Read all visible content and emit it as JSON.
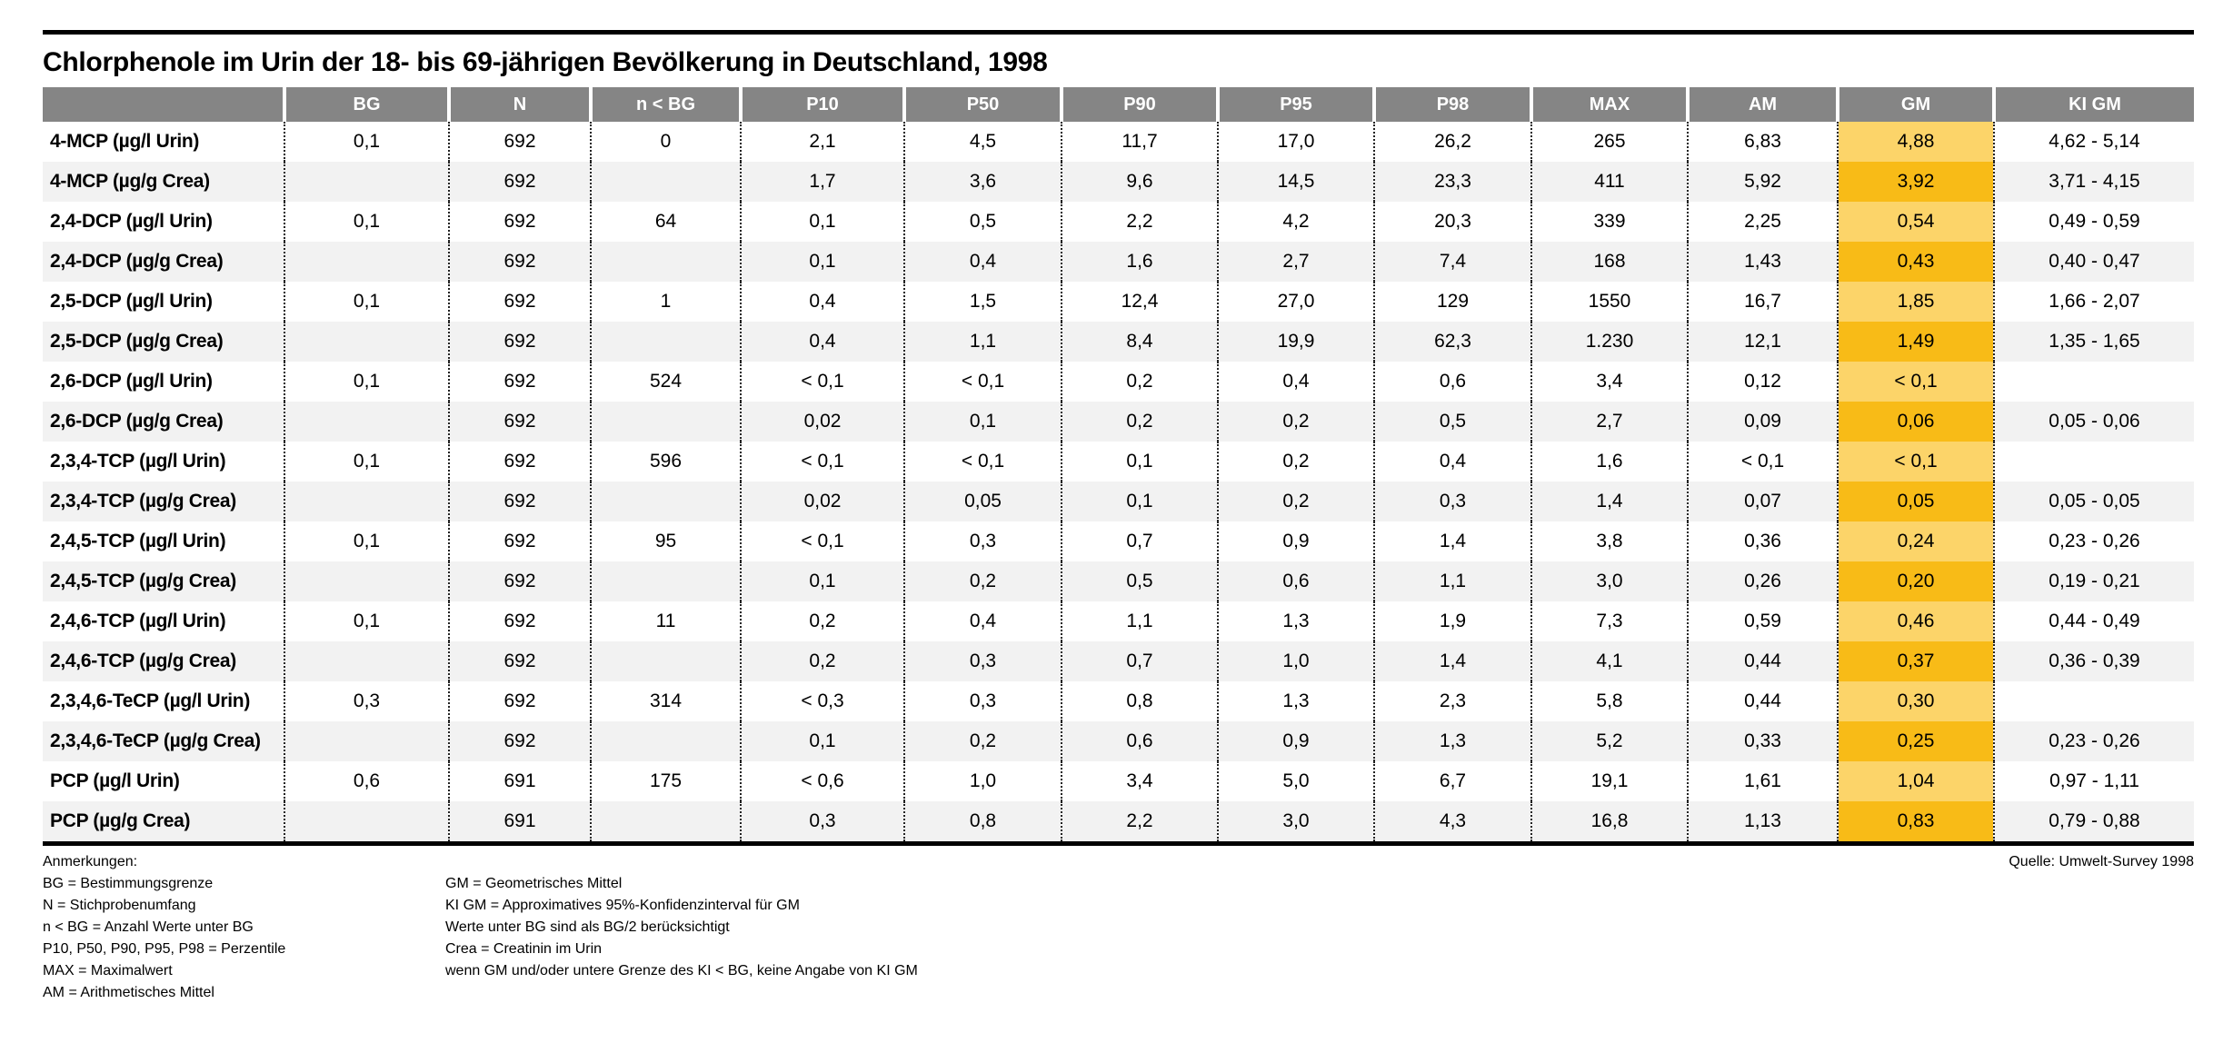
{
  "title": "Chlorphenole im Urin der 18- bis 69-jährigen Bevölkerung in Deutschland, 1998",
  "chart_data": {
    "type": "table",
    "title": "Chlorphenole im Urin der 18- bis 69-jährigen Bevölkerung in Deutschland, 1998",
    "columns": [
      "",
      "BG",
      "N",
      "n < BG",
      "P10",
      "P50",
      "P90",
      "P95",
      "P98",
      "MAX",
      "AM",
      "GM",
      "KI GM"
    ],
    "column_keys": [
      "bg",
      "n",
      "n_lt_bg",
      "p10",
      "p50",
      "p90",
      "p95",
      "p98",
      "max",
      "am",
      "gm",
      "ki_gm"
    ],
    "rows": [
      {
        "label": "4-MCP (µg/l Urin)",
        "values": [
          "0,1",
          "692",
          "0",
          "2,1",
          "4,5",
          "11,7",
          "17,0",
          "26,2",
          "265",
          "6,83",
          "4,88",
          "4,62 - 5,14"
        ]
      },
      {
        "label": "4-MCP (µg/g Crea)",
        "values": [
          "",
          "692",
          "",
          "1,7",
          "3,6",
          "9,6",
          "14,5",
          "23,3",
          "411",
          "5,92",
          "3,92",
          "3,71 - 4,15"
        ]
      },
      {
        "label": "2,4-DCP (µg/l Urin)",
        "values": [
          "0,1",
          "692",
          "64",
          "0,1",
          "0,5",
          "2,2",
          "4,2",
          "20,3",
          "339",
          "2,25",
          "0,54",
          "0,49 - 0,59"
        ]
      },
      {
        "label": "2,4-DCP (µg/g Crea)",
        "values": [
          "",
          "692",
          "",
          "0,1",
          "0,4",
          "1,6",
          "2,7",
          "7,4",
          "168",
          "1,43",
          "0,43",
          "0,40 - 0,47"
        ]
      },
      {
        "label": "2,5-DCP (µg/l Urin)",
        "values": [
          "0,1",
          "692",
          "1",
          "0,4",
          "1,5",
          "12,4",
          "27,0",
          "129",
          "1550",
          "16,7",
          "1,85",
          "1,66 - 2,07"
        ]
      },
      {
        "label": "2,5-DCP (µg/g Crea)",
        "values": [
          "",
          "692",
          "",
          "0,4",
          "1,1",
          "8,4",
          "19,9",
          "62,3",
          "1.230",
          "12,1",
          "1,49",
          "1,35 - 1,65"
        ]
      },
      {
        "label": "2,6-DCP (µg/l Urin)",
        "values": [
          "0,1",
          "692",
          "524",
          "< 0,1",
          "< 0,1",
          "0,2",
          "0,4",
          "0,6",
          "3,4",
          "0,12",
          "< 0,1",
          ""
        ]
      },
      {
        "label": "2,6-DCP (µg/g Crea)",
        "values": [
          "",
          "692",
          "",
          "0,02",
          "0,1",
          "0,2",
          "0,2",
          "0,5",
          "2,7",
          "0,09",
          "0,06",
          "0,05 - 0,06"
        ]
      },
      {
        "label": "2,3,4-TCP (µg/l Urin)",
        "values": [
          "0,1",
          "692",
          "596",
          "< 0,1",
          "< 0,1",
          "0,1",
          "0,2",
          "0,4",
          "1,6",
          "< 0,1",
          "< 0,1",
          ""
        ]
      },
      {
        "label": "2,3,4-TCP (µg/g Crea)",
        "values": [
          "",
          "692",
          "",
          "0,02",
          "0,05",
          "0,1",
          "0,2",
          "0,3",
          "1,4",
          "0,07",
          "0,05",
          "0,05 - 0,05"
        ]
      },
      {
        "label": "2,4,5-TCP (µg/l Urin)",
        "values": [
          "0,1",
          "692",
          "95",
          "< 0,1",
          "0,3",
          "0,7",
          "0,9",
          "1,4",
          "3,8",
          "0,36",
          "0,24",
          "0,23 - 0,26"
        ]
      },
      {
        "label": "2,4,5-TCP (µg/g Crea)",
        "values": [
          "",
          "692",
          "",
          "0,1",
          "0,2",
          "0,5",
          "0,6",
          "1,1",
          "3,0",
          "0,26",
          "0,20",
          "0,19 - 0,21"
        ]
      },
      {
        "label": "2,4,6-TCP (µg/l Urin)",
        "values": [
          "0,1",
          "692",
          "11",
          "0,2",
          "0,4",
          "1,1",
          "1,3",
          "1,9",
          "7,3",
          "0,59",
          "0,46",
          "0,44 - 0,49"
        ]
      },
      {
        "label": "2,4,6-TCP (µg/g Crea)",
        "values": [
          "",
          "692",
          "",
          "0,2",
          "0,3",
          "0,7",
          "1,0",
          "1,4",
          "4,1",
          "0,44",
          "0,37",
          "0,36 - 0,39"
        ]
      },
      {
        "label": "2,3,4,6-TeCP (µg/l Urin)",
        "values": [
          "0,3",
          "692",
          "314",
          "< 0,3",
          "0,3",
          "0,8",
          "1,3",
          "2,3",
          "5,8",
          "0,44",
          "0,30",
          ""
        ]
      },
      {
        "label": "2,3,4,6-TeCP (µg/g Crea)",
        "values": [
          "",
          "692",
          "",
          "0,1",
          "0,2",
          "0,6",
          "0,9",
          "1,3",
          "5,2",
          "0,33",
          "0,25",
          "0,23 - 0,26"
        ]
      },
      {
        "label": "PCP (µg/l Urin)",
        "values": [
          "0,6",
          "691",
          "175",
          "< 0,6",
          "1,0",
          "3,4",
          "5,0",
          "6,7",
          "19,1",
          "1,61",
          "1,04",
          "0,97 - 1,11"
        ]
      },
      {
        "label": "PCP (µg/g Crea)",
        "values": [
          "",
          "691",
          "",
          "0,3",
          "0,8",
          "2,2",
          "3,0",
          "4,3",
          "16,8",
          "1,13",
          "0,83",
          "0,79 - 0,88"
        ]
      }
    ],
    "highlight_column": "GM",
    "legend_position": "none",
    "grid": "dotted-column-separators"
  },
  "notes": {
    "heading": "Anmerkungen:",
    "left": [
      "BG = Bestimmungsgrenze",
      "N = Stichprobenumfang",
      "n < BG = Anzahl Werte unter BG",
      "P10, P50, P90, P95, P98 = Perzentile",
      "MAX = Maximalwert",
      "AM = Arithmetisches Mittel"
    ],
    "right": [
      "GM = Geometrisches Mittel",
      "KI GM = Approximatives 95%-Konfidenzinterval für GM",
      "Werte unter BG sind als BG/2 berücksichtigt",
      "Crea = Creatinin im Urin",
      "wenn GM und/oder untere Grenze des KI < BG, keine Angabe von KI GM"
    ]
  },
  "source": "Quelle: Umwelt-Survey 1998",
  "colors": {
    "header_bg": "#858585",
    "row_stripe": "#f2f2f2",
    "gm_light": "#fcd469",
    "gm_dark": "#f8bb17",
    "rule": "#000000"
  }
}
